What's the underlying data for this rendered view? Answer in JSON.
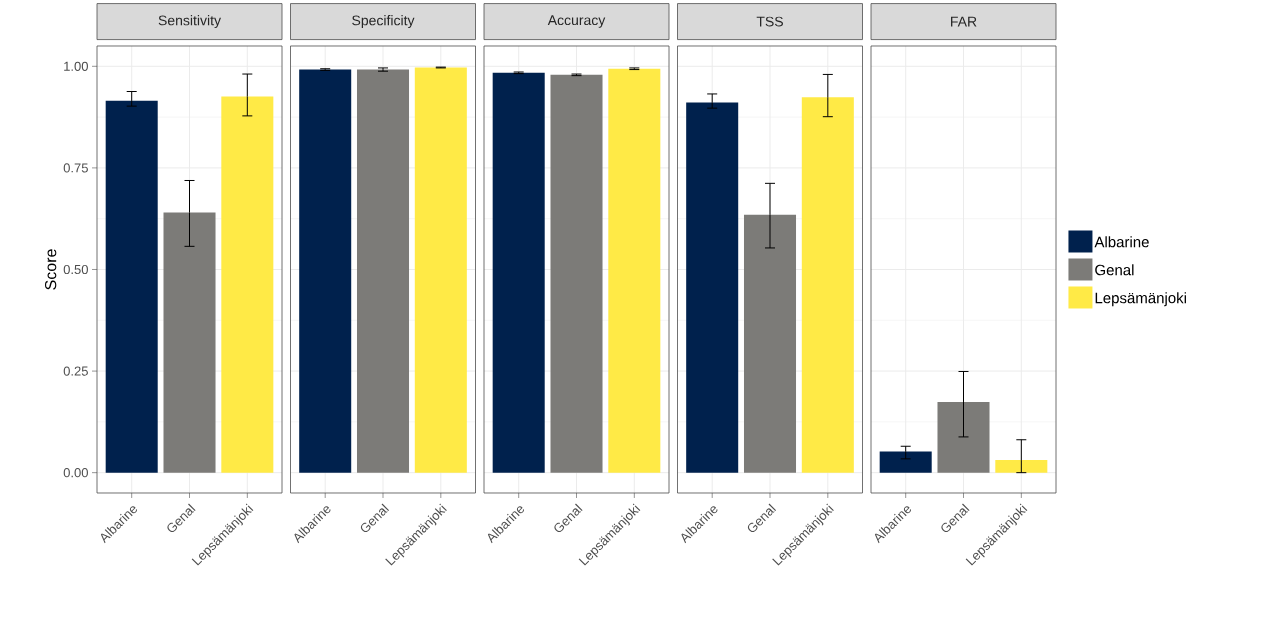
{
  "chart_data": [
    {
      "type": "bar",
      "title": "Sensitivity",
      "ylabel": "Score",
      "categories": [
        "Albarine",
        "Genal",
        "Lepsämänjoki"
      ],
      "series": [
        {
          "color": "#00214d",
          "values": [
            0.915,
            null,
            null
          ],
          "errors": [
            [
              0.902,
              0.938
            ],
            null,
            null
          ]
        },
        {
          "color": "#7c7b78",
          "values": [
            null,
            0.64,
            null
          ],
          "errors": [
            null,
            [
              0.557,
              0.719
            ],
            null
          ]
        },
        {
          "color": "#ffea46",
          "values": [
            null,
            null,
            0.926
          ],
          "errors": [
            null,
            null,
            [
              0.878,
              0.981
            ]
          ]
        }
      ],
      "ylim": [
        -0.05,
        1.05
      ],
      "yticks": [
        {
          "value": 0,
          "label": "0.00"
        },
        {
          "value": 0.25,
          "label": "0.25"
        },
        {
          "value": 0.5,
          "label": "0.50"
        },
        {
          "value": 0.75,
          "label": "0.75"
        },
        {
          "value": 1,
          "label": "1.00"
        }
      ],
      "grid": true
    },
    {
      "type": "bar",
      "title": "Specificity",
      "categories": [
        "Albarine",
        "Genal",
        "Lepsämänjoki"
      ],
      "series": [
        {
          "color": "#00214d",
          "values": [
            0.992,
            null,
            null
          ],
          "errors": [
            [
              0.99,
              0.994
            ],
            null,
            null
          ]
        },
        {
          "color": "#7c7b78",
          "values": [
            null,
            0.992,
            null
          ],
          "errors": [
            null,
            [
              0.988,
              0.996
            ],
            null
          ]
        },
        {
          "color": "#ffea46",
          "values": [
            null,
            null,
            0.997
          ],
          "errors": [
            null,
            null,
            [
              0.996,
              0.998
            ]
          ]
        }
      ],
      "ylim": [
        -0.05,
        1.05
      ],
      "yticks": [
        {
          "value": 0,
          "label": null
        },
        {
          "value": 0.25,
          "label": null
        },
        {
          "value": 0.5,
          "label": null
        },
        {
          "value": 0.75,
          "label": null
        },
        {
          "value": 1,
          "label": null
        }
      ],
      "grid": true,
      "tick_labels": "x"
    },
    {
      "type": "bar",
      "title": "Accuracy",
      "categories": [
        "Albarine",
        "Genal",
        "Lepsämänjoki"
      ],
      "series": [
        {
          "color": "#00214d",
          "values": [
            0.984,
            null,
            null
          ],
          "errors": [
            [
              0.982,
              0.986
            ],
            null,
            null
          ]
        },
        {
          "color": "#7c7b78",
          "values": [
            null,
            0.979,
            null
          ],
          "errors": [
            null,
            [
              0.977,
              0.981
            ],
            null
          ]
        },
        {
          "color": "#ffea46",
          "values": [
            null,
            null,
            0.994
          ],
          "errors": [
            null,
            null,
            [
              0.992,
              0.996
            ]
          ]
        }
      ],
      "ylim": [
        -0.05,
        1.05
      ],
      "yticks": [
        {
          "value": 0,
          "label": null
        },
        {
          "value": 0.25,
          "label": null
        },
        {
          "value": 0.5,
          "label": null
        },
        {
          "value": 0.75,
          "label": null
        },
        {
          "value": 1,
          "label": null
        }
      ],
      "grid": true,
      "tick_labels": "x"
    },
    {
      "type": "bar",
      "title": "TSS",
      "categories": [
        "Albarine",
        "Genal",
        "Lepsämänjoki"
      ],
      "series": [
        {
          "color": "#00214d",
          "values": [
            0.911,
            null,
            null
          ],
          "errors": [
            [
              0.897,
              0.932
            ],
            null,
            null
          ]
        },
        {
          "color": "#7c7b78",
          "values": [
            null,
            0.635,
            null
          ],
          "errors": [
            null,
            [
              0.553,
              0.712
            ],
            null
          ]
        },
        {
          "color": "#ffea46",
          "values": [
            null,
            null,
            0.924
          ],
          "errors": [
            null,
            null,
            [
              0.876,
              0.98
            ]
          ]
        }
      ],
      "ylim": [
        -0.05,
        1.05
      ],
      "yticks": [
        {
          "value": 0,
          "label": null
        },
        {
          "value": 0.25,
          "label": null
        },
        {
          "value": 0.5,
          "label": null
        },
        {
          "value": 0.75,
          "label": null
        },
        {
          "value": 1,
          "label": null
        }
      ],
      "grid": true,
      "tick_labels": "x"
    },
    {
      "type": "bar",
      "title": "FAR",
      "categories": [
        "Albarine",
        "Genal",
        "Lepsämänjoki"
      ],
      "series": [
        {
          "name": "Albarine",
          "color": "#00214d",
          "values": [
            0.052,
            null,
            null
          ],
          "errors": [
            [
              0.034,
              0.065
            ],
            null,
            null
          ]
        },
        {
          "name": "Genal",
          "color": "#7c7b78",
          "values": [
            null,
            0.174,
            null
          ],
          "errors": [
            null,
            [
              0.088,
              0.249
            ],
            null
          ]
        },
        {
          "name": "Lepsämänjoki",
          "color": "#ffea46",
          "values": [
            null,
            null,
            0.031
          ],
          "errors": [
            null,
            null,
            [
              0.0,
              0.081
            ]
          ]
        }
      ],
      "ylim": [
        -0.05,
        1.05
      ],
      "yticks": [
        {
          "value": 0,
          "label": null
        },
        {
          "value": 0.25,
          "label": null
        },
        {
          "value": 0.5,
          "label": null
        },
        {
          "value": 0.75,
          "label": null
        },
        {
          "value": 1,
          "label": null
        }
      ],
      "grid": true,
      "tick_labels": "x",
      "legend": "right"
    }
  ]
}
